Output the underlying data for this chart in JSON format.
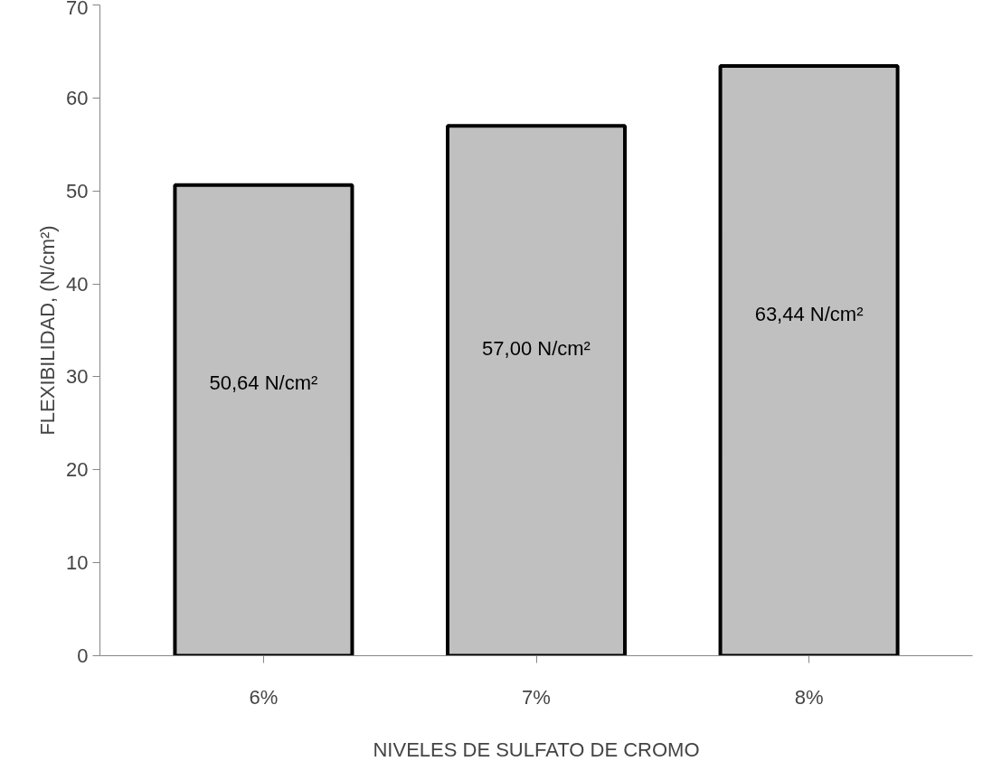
{
  "chart_data": {
    "type": "bar",
    "xlabel": "NIVELES DE SULFATO DE CROMO",
    "ylabel": "FLEXIBILIDAD, (N/cm²)",
    "categories": [
      "6%",
      "7%",
      "8%"
    ],
    "values": [
      50.64,
      57.0,
      63.44
    ],
    "value_labels": [
      "50,64 N/cm²",
      "57,00 N/cm²",
      "63,44 N/cm²"
    ],
    "color": "#c0c0c0",
    "ylim": [
      0,
      70
    ],
    "yticks": [
      0,
      10,
      20,
      30,
      40,
      50,
      60,
      70
    ],
    "grid": false
  }
}
